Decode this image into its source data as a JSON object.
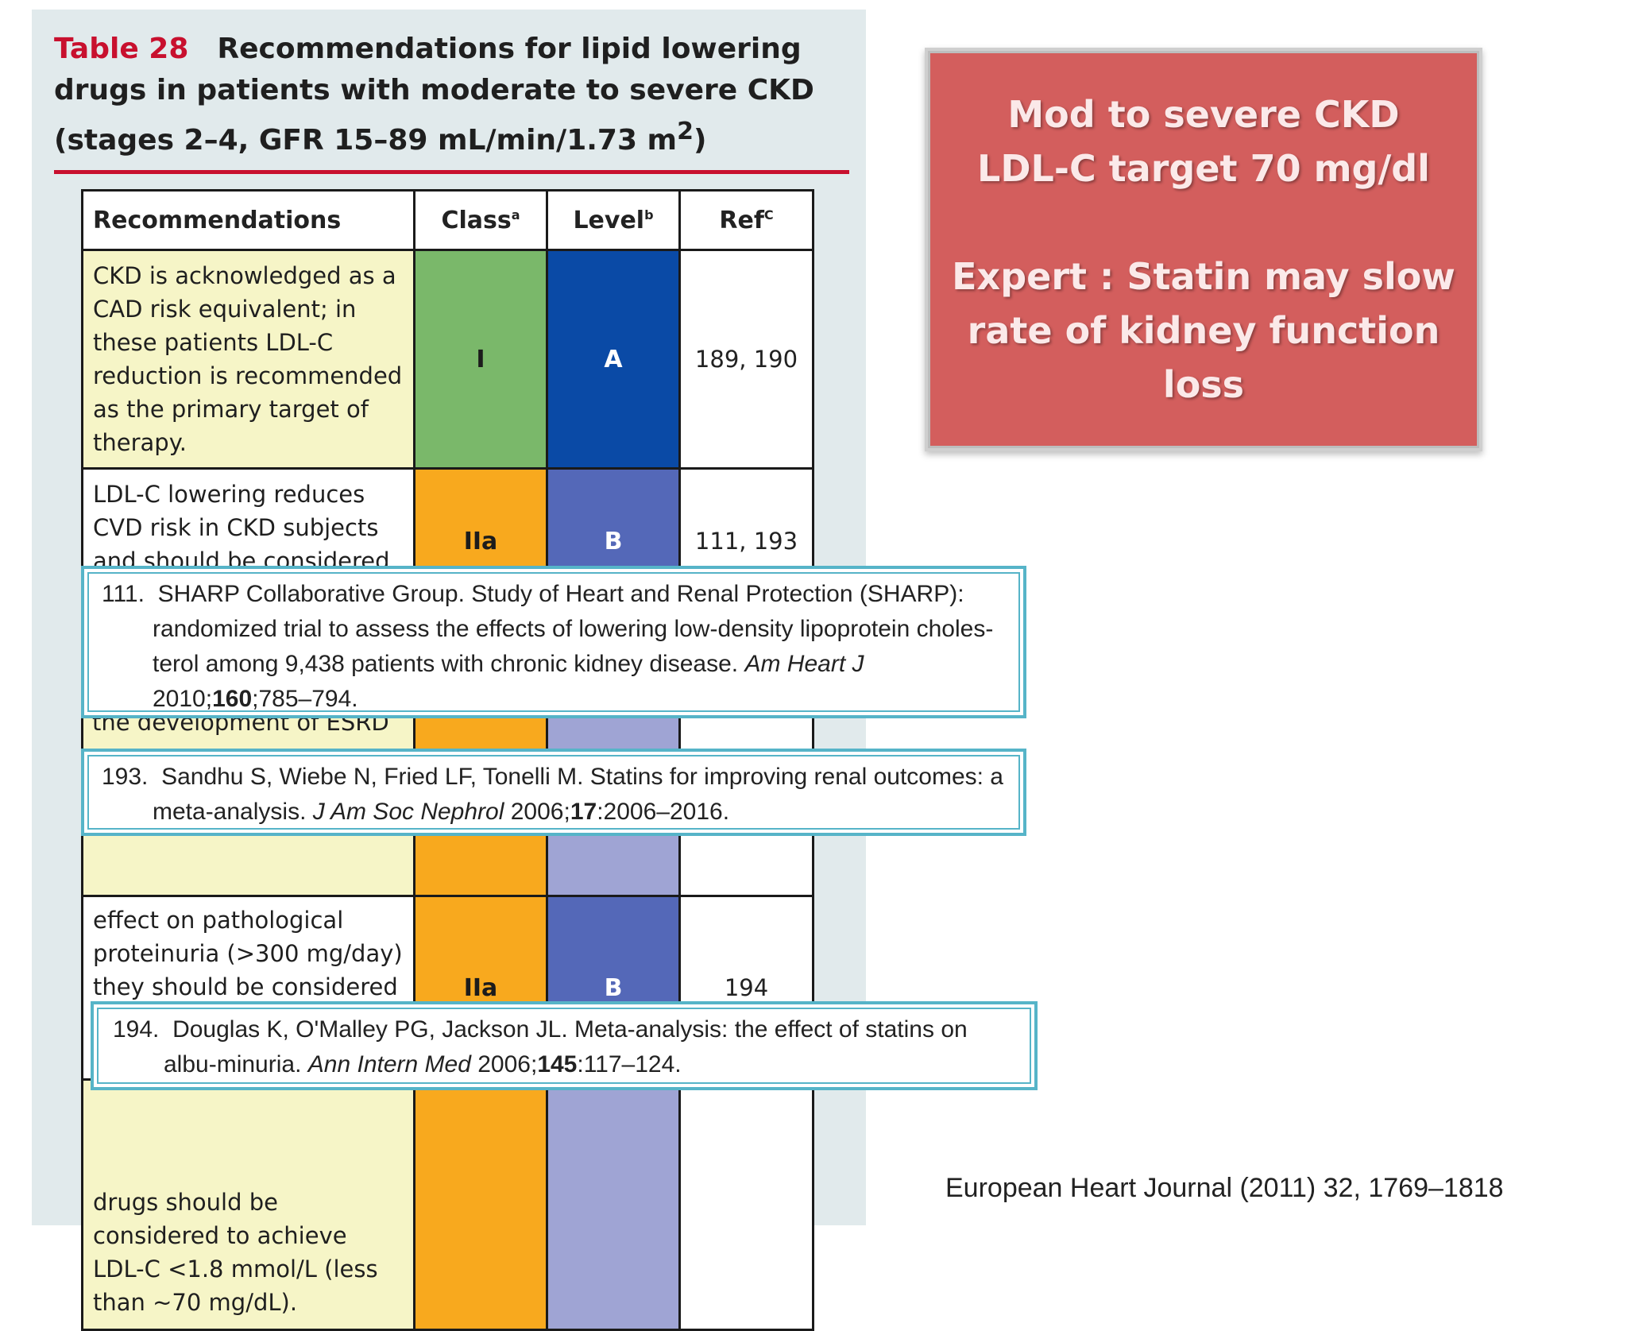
{
  "table": {
    "number": "Table 28",
    "title": "Recommendations for lipid lowering drugs in patients with moderate to severe CKD (stages 2–4, GFR 15–89 mL/min/1.73 m",
    "title_sup": "2",
    "title_end": ")",
    "headers": {
      "recommendations": "Recommendations",
      "class": "Class",
      "class_sup": "a",
      "level": "Level",
      "level_sup": "b",
      "ref": "Ref",
      "ref_sup": "C"
    },
    "rows": [
      {
        "text": "CKD is acknowledged as a CAD risk equivalent; in these patients LDL-C reduction is recommended as the primary target of therapy.",
        "class": "I",
        "level": "A",
        "ref": "189, 190"
      },
      {
        "text": "LDL-C lowering reduces CVD risk in CKD subjects and should be considered.",
        "class": "IIa",
        "level": "B",
        "ref": "111, 193"
      },
      {
        "text": "effect on pathological proteinuria (>300 mg/day) they should be considered in patients with stage 2–4 CKD.",
        "class": "IIa",
        "level": "B",
        "ref": "194"
      },
      {
        "text": "drugs should be considered to achieve LDL-C <1.8 mmol/L (less than ~70 mg/dL).",
        "class": "",
        "level": "",
        "ref": ""
      }
    ],
    "partial_texts": {
      "esrd": "the development of ESRD"
    },
    "colors": {
      "class_I": "#7ab86a",
      "level_A": "#0a4aa6",
      "class_IIa": "#f8a91e",
      "level_B": "#5468b8",
      "level_light": "#9fa4d4",
      "rec_yellow": "#f6f5c7",
      "title_red": "#c8102e"
    }
  },
  "references": [
    {
      "num": "111.",
      "before": "SHARP Collaborative Group. Study of Heart and Renal Protection (SHARP): randomized trial to assess the effects of lowering low-density lipoprotein choles-terol among 9,438 patients with chronic kidney disease.",
      "journal": "Am Heart J",
      "year": "2010;",
      "volume": "160",
      "pages": ";785–794."
    },
    {
      "num": "193.",
      "before": "Sandhu S, Wiebe N, Fried LF, Tonelli M. Statins for improving renal outcomes: a meta-analysis.",
      "journal": "J Am Soc Nephrol",
      "year": "2006;",
      "volume": "17",
      "pages": ":2006–2016."
    },
    {
      "num": "194.",
      "before": "Douglas K, O'Malley PG, Jackson JL. Meta-analysis: the effect of statins on albu-minuria.",
      "journal": "Ann Intern Med",
      "year": "2006;",
      "volume": "145",
      "pages": ":117–124."
    }
  ],
  "callout": {
    "line1": "Mod to severe CKD",
    "line2": "LDL-C target 70 mg/dl",
    "line3": "Expert : Statin may slow",
    "line4": "rate of kidney function loss",
    "color": "#d35e5d"
  },
  "citation": "European Heart Journal (2011) 32, 1769–1818"
}
